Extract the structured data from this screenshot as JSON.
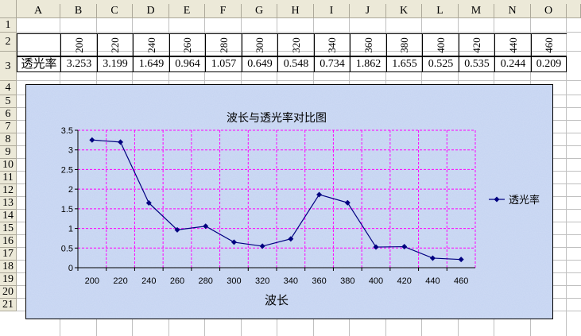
{
  "sheet": {
    "columns": [
      "A",
      "B",
      "C",
      "D",
      "E",
      "F",
      "G",
      "H",
      "I",
      "J",
      "K",
      "L",
      "M",
      "N",
      "O"
    ],
    "rows": [
      "1",
      "2",
      "3",
      "4",
      "5",
      "6",
      "7",
      "8",
      "9",
      "10",
      "11",
      "12",
      "13",
      "14",
      "15",
      "16",
      "17",
      "18",
      "19",
      "20",
      "21"
    ],
    "header_values": [
      "200",
      "220",
      "240",
      "260",
      "280",
      "300",
      "320",
      "340",
      "360",
      "380",
      "400",
      "420",
      "440",
      "460"
    ],
    "row3_label": "透光率",
    "row3_values": [
      "3.253",
      "3.199",
      "1.649",
      "0.964",
      "1.057",
      "0.649",
      "0.548",
      "0.734",
      "1.862",
      "1.655",
      "0.525",
      "0.535",
      "0.244",
      "0.209"
    ]
  },
  "chart_data": {
    "type": "line",
    "title": "波长与透光率对比图",
    "xlabel": "波长",
    "ylabel": "",
    "categories": [
      "200",
      "220",
      "240",
      "260",
      "280",
      "300",
      "320",
      "340",
      "360",
      "380",
      "400",
      "420",
      "440",
      "460"
    ],
    "series": [
      {
        "name": "透光率",
        "values": [
          3.253,
          3.199,
          1.649,
          0.964,
          1.057,
          0.649,
          0.548,
          0.734,
          1.862,
          1.655,
          0.525,
          0.535,
          0.244,
          0.209
        ]
      }
    ],
    "ylim": [
      0,
      3.5
    ],
    "yticks": [
      "0",
      "0.5",
      "1",
      "1.5",
      "2",
      "2.5",
      "3",
      "3.5"
    ],
    "grid": true,
    "legend": "right",
    "colors": {
      "line": "#000080",
      "marker": "#000080",
      "grid": "#ff00ff",
      "plot_border": "#808080"
    }
  }
}
